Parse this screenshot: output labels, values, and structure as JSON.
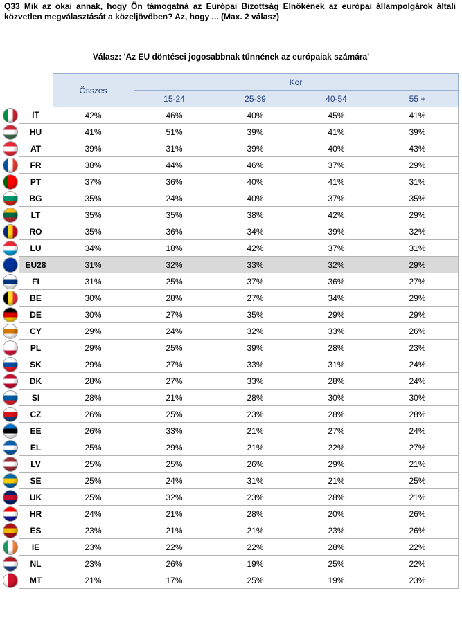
{
  "question": "Q33 Mik az okai annak, hogy Ön támogatná az Európai Bizottság Elnökének az európai állampolgárok általi közvetlen megválasztását a közeljövőben? Az, hogy ... (Max. 2 válasz)",
  "subtitle": "Válasz: 'Az EU döntései jogosabbnak tűnnének az európaiak számára'",
  "headers": {
    "total": "Összes",
    "group": "Kor",
    "ages": [
      "15-24",
      "25-39",
      "40-54",
      "55 +"
    ]
  },
  "rows": [
    {
      "code": "IT",
      "flag_icon": "italy-flag-icon",
      "colors": [
        "#009246",
        "#ffffff",
        "#ce2b37"
      ],
      "dir": "v",
      "values": [
        "42%",
        "46%",
        "40%",
        "45%",
        "41%"
      ]
    },
    {
      "code": "HU",
      "flag_icon": "hungary-flag-icon",
      "colors": [
        "#ce2939",
        "#ffffff",
        "#477050"
      ],
      "dir": "h",
      "values": [
        "41%",
        "51%",
        "39%",
        "41%",
        "39%"
      ]
    },
    {
      "code": "AT",
      "flag_icon": "austria-flag-icon",
      "colors": [
        "#ed2939",
        "#ffffff",
        "#ed2939"
      ],
      "dir": "h",
      "values": [
        "39%",
        "31%",
        "39%",
        "40%",
        "43%"
      ]
    },
    {
      "code": "FR",
      "flag_icon": "france-flag-icon",
      "colors": [
        "#0055a4",
        "#ffffff",
        "#ef4135"
      ],
      "dir": "v",
      "values": [
        "38%",
        "44%",
        "46%",
        "37%",
        "29%"
      ]
    },
    {
      "code": "PT",
      "flag_icon": "portugal-flag-icon",
      "colors": [
        "#006600",
        "#ff0000",
        "#ff0000"
      ],
      "dir": "v",
      "values": [
        "37%",
        "36%",
        "40%",
        "41%",
        "31%"
      ]
    },
    {
      "code": "BG",
      "flag_icon": "bulgaria-flag-icon",
      "colors": [
        "#ffffff",
        "#00966e",
        "#d62612"
      ],
      "dir": "h",
      "values": [
        "35%",
        "24%",
        "40%",
        "37%",
        "35%"
      ]
    },
    {
      "code": "LT",
      "flag_icon": "lithuania-flag-icon",
      "colors": [
        "#fdb913",
        "#006a44",
        "#c1272d"
      ],
      "dir": "h",
      "values": [
        "35%",
        "35%",
        "38%",
        "42%",
        "29%"
      ]
    },
    {
      "code": "RO",
      "flag_icon": "romania-flag-icon",
      "colors": [
        "#002b7f",
        "#fcd116",
        "#ce1126"
      ],
      "dir": "v",
      "values": [
        "35%",
        "36%",
        "34%",
        "39%",
        "32%"
      ]
    },
    {
      "code": "LU",
      "flag_icon": "luxembourg-flag-icon",
      "colors": [
        "#ed2939",
        "#ffffff",
        "#00a1de"
      ],
      "dir": "h",
      "values": [
        "34%",
        "18%",
        "42%",
        "37%",
        "31%"
      ]
    },
    {
      "code": "EU28",
      "flag_icon": "eu-flag-icon",
      "colors": [
        "#003399",
        "#003399",
        "#003399"
      ],
      "dir": "h",
      "values": [
        "31%",
        "32%",
        "33%",
        "32%",
        "29%"
      ]
    },
    {
      "code": "FI",
      "flag_icon": "finland-flag-icon",
      "colors": [
        "#ffffff",
        "#003580",
        "#ffffff"
      ],
      "dir": "h",
      "values": [
        "31%",
        "25%",
        "37%",
        "36%",
        "27%"
      ]
    },
    {
      "code": "BE",
      "flag_icon": "belgium-flag-icon",
      "colors": [
        "#000000",
        "#fdda24",
        "#ef3340"
      ],
      "dir": "v",
      "values": [
        "30%",
        "28%",
        "27%",
        "34%",
        "29%"
      ]
    },
    {
      "code": "DE",
      "flag_icon": "germany-flag-icon",
      "colors": [
        "#000000",
        "#dd0000",
        "#ffce00"
      ],
      "dir": "h",
      "values": [
        "30%",
        "27%",
        "35%",
        "29%",
        "29%"
      ]
    },
    {
      "code": "CY",
      "flag_icon": "cyprus-flag-icon",
      "colors": [
        "#ffffff",
        "#d57800",
        "#ffffff"
      ],
      "dir": "h",
      "values": [
        "29%",
        "24%",
        "32%",
        "33%",
        "26%"
      ]
    },
    {
      "code": "PL",
      "flag_icon": "poland-flag-icon",
      "colors": [
        "#ffffff",
        "#ffffff",
        "#dc143c"
      ],
      "dir": "h",
      "values": [
        "29%",
        "25%",
        "39%",
        "28%",
        "23%"
      ]
    },
    {
      "code": "SK",
      "flag_icon": "slovakia-flag-icon",
      "colors": [
        "#ffffff",
        "#0b4ea2",
        "#ee1c25"
      ],
      "dir": "h",
      "values": [
        "29%",
        "27%",
        "33%",
        "31%",
        "24%"
      ]
    },
    {
      "code": "DK",
      "flag_icon": "denmark-flag-icon",
      "colors": [
        "#c60c30",
        "#ffffff",
        "#c60c30"
      ],
      "dir": "h",
      "values": [
        "28%",
        "27%",
        "33%",
        "28%",
        "24%"
      ]
    },
    {
      "code": "SI",
      "flag_icon": "slovenia-flag-icon",
      "colors": [
        "#ffffff",
        "#005da4",
        "#ed1c24"
      ],
      "dir": "h",
      "values": [
        "28%",
        "21%",
        "28%",
        "30%",
        "30%"
      ]
    },
    {
      "code": "CZ",
      "flag_icon": "czech-flag-icon",
      "colors": [
        "#ffffff",
        "#d7141a",
        "#11457e"
      ],
      "dir": "h",
      "values": [
        "26%",
        "25%",
        "23%",
        "28%",
        "28%"
      ]
    },
    {
      "code": "EE",
      "flag_icon": "estonia-flag-icon",
      "colors": [
        "#0072ce",
        "#000000",
        "#ffffff"
      ],
      "dir": "h",
      "values": [
        "26%",
        "33%",
        "21%",
        "27%",
        "24%"
      ]
    },
    {
      "code": "EL",
      "flag_icon": "greece-flag-icon",
      "colors": [
        "#0d5eaf",
        "#ffffff",
        "#0d5eaf"
      ],
      "dir": "h",
      "values": [
        "25%",
        "29%",
        "21%",
        "22%",
        "27%"
      ]
    },
    {
      "code": "LV",
      "flag_icon": "latvia-flag-icon",
      "colors": [
        "#9e3039",
        "#ffffff",
        "#9e3039"
      ],
      "dir": "h",
      "values": [
        "25%",
        "25%",
        "26%",
        "29%",
        "21%"
      ]
    },
    {
      "code": "SE",
      "flag_icon": "sweden-flag-icon",
      "colors": [
        "#006aa7",
        "#fecc00",
        "#006aa7"
      ],
      "dir": "h",
      "values": [
        "25%",
        "24%",
        "31%",
        "21%",
        "25%"
      ]
    },
    {
      "code": "UK",
      "flag_icon": "uk-flag-icon",
      "colors": [
        "#012169",
        "#c8102e",
        "#012169"
      ],
      "dir": "h",
      "values": [
        "25%",
        "32%",
        "23%",
        "28%",
        "21%"
      ]
    },
    {
      "code": "HR",
      "flag_icon": "croatia-flag-icon",
      "colors": [
        "#ff0000",
        "#ffffff",
        "#171796"
      ],
      "dir": "h",
      "values": [
        "24%",
        "21%",
        "28%",
        "20%",
        "26%"
      ]
    },
    {
      "code": "ES",
      "flag_icon": "spain-flag-icon",
      "colors": [
        "#aa151b",
        "#f1bf00",
        "#aa151b"
      ],
      "dir": "h",
      "values": [
        "23%",
        "21%",
        "21%",
        "23%",
        "26%"
      ]
    },
    {
      "code": "IE",
      "flag_icon": "ireland-flag-icon",
      "colors": [
        "#169b62",
        "#ffffff",
        "#ff883e"
      ],
      "dir": "v",
      "values": [
        "23%",
        "22%",
        "22%",
        "28%",
        "22%"
      ]
    },
    {
      "code": "NL",
      "flag_icon": "netherlands-flag-icon",
      "colors": [
        "#ae1c28",
        "#ffffff",
        "#21468b"
      ],
      "dir": "h",
      "values": [
        "23%",
        "26%",
        "19%",
        "25%",
        "22%"
      ]
    },
    {
      "code": "MT",
      "flag_icon": "malta-flag-icon",
      "colors": [
        "#ffffff",
        "#cf142b",
        "#cf142b"
      ],
      "dir": "v",
      "values": [
        "21%",
        "17%",
        "25%",
        "19%",
        "23%"
      ]
    }
  ]
}
